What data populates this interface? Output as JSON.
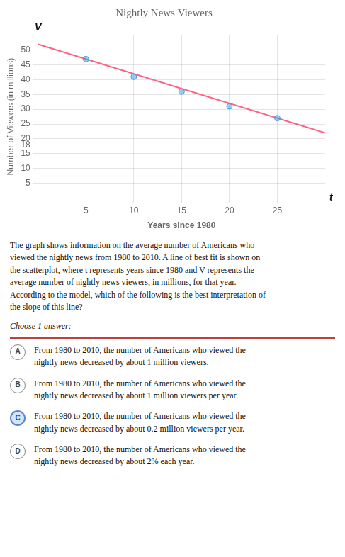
{
  "chart_data": {
    "type": "scatter",
    "title": "Nightly News Viewers",
    "xlabel": "Years since 1980",
    "ylabel": "Number of Viewers (in millions)",
    "series": [
      {
        "type": "scatter",
        "x": [
          5,
          10,
          15,
          20,
          25
        ],
        "values": [
          47,
          41,
          36,
          31,
          27
        ]
      },
      {
        "type": "line",
        "x": [
          0,
          30
        ],
        "values": [
          52,
          22
        ]
      }
    ],
    "xlim": [
      0,
      30
    ],
    "ylim": [
      0,
      55
    ],
    "xticks": [
      5,
      10,
      15,
      20,
      25
    ],
    "yticks": [
      5,
      10,
      15,
      18,
      20,
      25,
      30,
      35,
      40,
      45,
      50
    ],
    "grid": true,
    "annotations": [
      "V",
      "t"
    ],
    "body_text": "The graph shows information on the average number of Americans who\nviewed the nightly news from 1980 to 2010. A line of best fit is shown on\nthe scatterplot, where t represents years since 1980 and V represents the\naverage number of nightly news viewers, in millions, for that year.\nAccording to the model, which of the following is the best interpretation of\nthe slope of this line?",
    "choose_text": "Choose 1 answer:",
    "options": [
      {
        "label": "A",
        "text": "From 1980 to 2010, the number of Americans who viewed the\nnightly news decreased by about 1 million viewers.",
        "selected": false
      },
      {
        "label": "B",
        "text": "From 1980 to 2010, the number of Americans who viewed the\nnightly news decreased by about 1 million viewers per year.",
        "selected": false
      },
      {
        "label": "C",
        "text": "From 1980 to 2010, the number of Americans who viewed the\nnightly news decreased by about 0.2 million viewers per year.",
        "selected": true
      },
      {
        "label": "D",
        "text": "From 1980 to 2010, the number of Americans who viewed the\nnightly news decreased by about 2% each year.",
        "selected": false
      }
    ]
  }
}
